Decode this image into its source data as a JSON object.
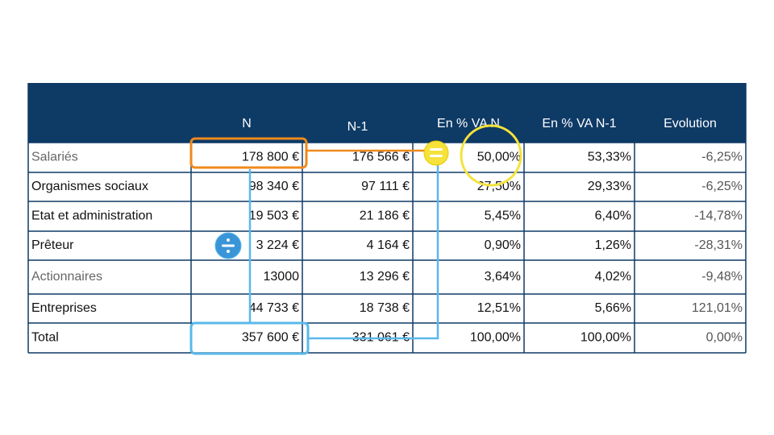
{
  "table": {
    "header": [
      "N",
      "N-1",
      "En % VA N",
      "En % VA N-1",
      "Evolution"
    ],
    "rows": [
      [
        "Salariés",
        "178 800 €",
        "176 566 €",
        "50,00%",
        "53,33%",
        "-6,25%"
      ],
      [
        "Organismes sociaux",
        "98 340 €",
        "97 111 €",
        "27,50%",
        "29,33%",
        "-6,25%"
      ],
      [
        "Etat et administration",
        "19 503 €",
        "21 186 €",
        "5,45%",
        "6,40%",
        "-14,78%"
      ],
      [
        "Prêteur",
        "3 224 €",
        "4 164 €",
        "0,90%",
        "1,26%",
        "-28,31%"
      ],
      [
        "Actionnaires",
        "13000",
        "13 296 €",
        "3,64%",
        "4,02%",
        "-9,48%"
      ],
      [
        "Entreprises",
        "44 733 €",
        "18 738 €",
        "12,51%",
        "5,66%",
        "121,01%"
      ],
      [
        "Total",
        "357 600 €",
        "331 061 €",
        "100,00%",
        "100,00%",
        "0,00%"
      ]
    ]
  }
}
